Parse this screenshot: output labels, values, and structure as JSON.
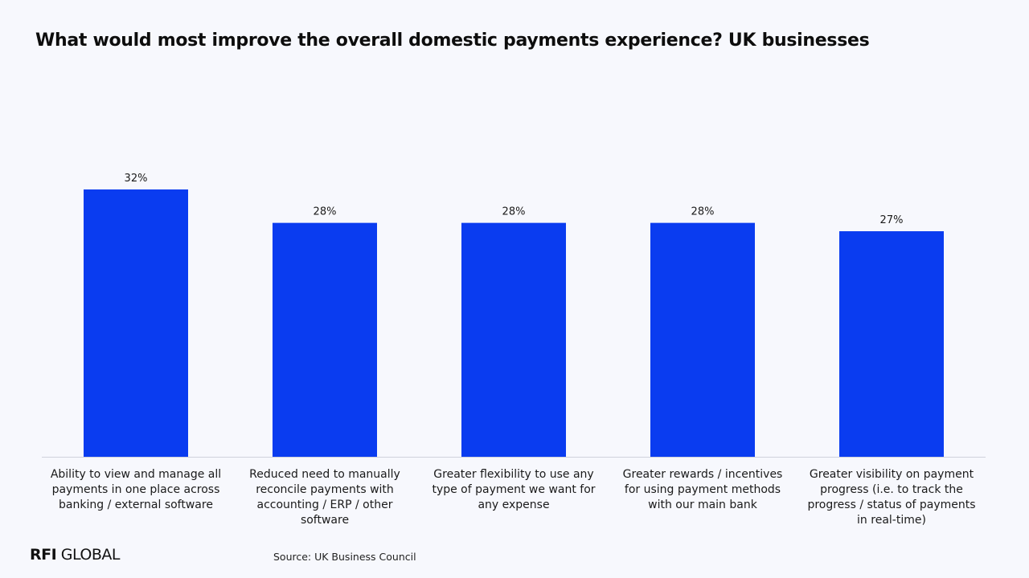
{
  "title": "What would most improve the overall domestic payments experience? UK businesses",
  "chart_data": {
    "type": "bar",
    "title": "What would most improve the overall domestic payments experience? UK businesses",
    "categories": [
      [
        "Ability to view and manage all",
        "payments in one place across",
        "banking / external software"
      ],
      [
        "Reduced need to manually",
        "reconcile payments with",
        "accounting / ERP / other",
        "software"
      ],
      [
        "Greater flexibility to use any",
        "type of payment we want for",
        "any expense"
      ],
      [
        "Greater rewards / incentives",
        "for using payment methods",
        "with our main bank"
      ],
      [
        "Greater visibility on payment",
        "progress (i.e. to track the",
        "progress / status of payments",
        "in real-time)"
      ]
    ],
    "values": [
      32,
      28,
      28,
      28,
      27
    ],
    "value_labels": [
      "32%",
      "28%",
      "28%",
      "28%",
      "27%"
    ],
    "xlabel": "",
    "ylabel": "",
    "ylim": [
      0,
      32
    ],
    "grid": false,
    "bar_color": "#0a3cf0"
  },
  "footer": {
    "logo_bold": "RFI",
    "logo_light": "GLOBAL",
    "source": "Source: UK Business Council"
  }
}
